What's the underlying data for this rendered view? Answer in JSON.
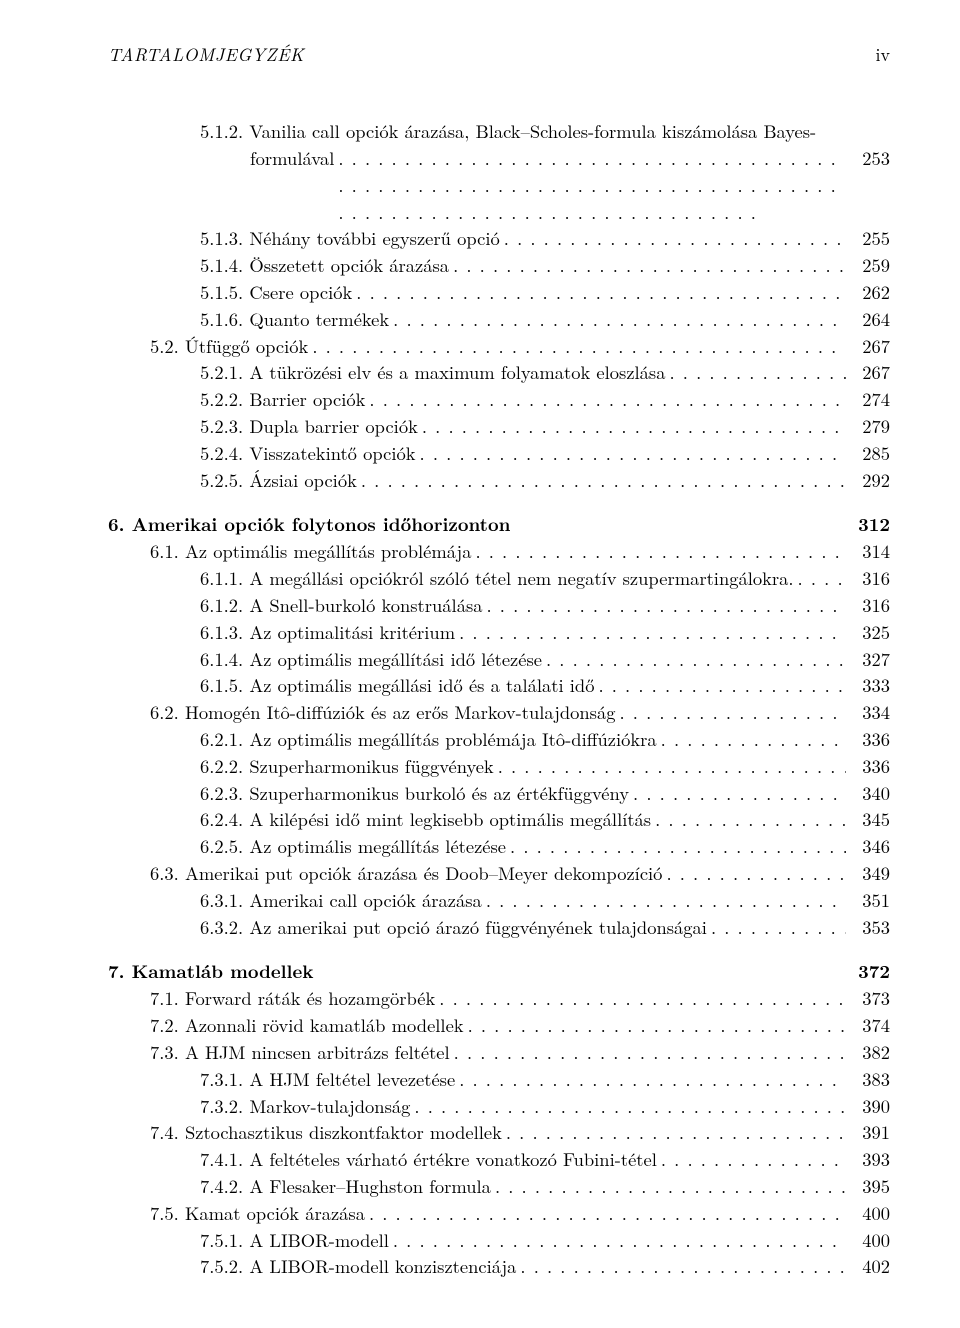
{
  "header": {
    "left": "TARTALOMJEGYZÉK",
    "right": "iv"
  },
  "entries": [
    {
      "type": "wrap",
      "indent": 2,
      "num": "5.1.2.",
      "text1": "Vanilia call opciók árazása, Black–Scholes-formula kiszámolása Bayes-",
      "text2": "formulával",
      "l2pad": 92,
      "page": "253"
    },
    {
      "indent": 2,
      "num": "5.1.3.",
      "text": "Néhány további egyszerű opció",
      "page": "255"
    },
    {
      "indent": 2,
      "num": "5.1.4.",
      "text": "Összetett opciók árazása",
      "page": "259"
    },
    {
      "indent": 2,
      "num": "5.1.5.",
      "text": "Csere opciók",
      "page": "262"
    },
    {
      "indent": 2,
      "num": "5.1.6.",
      "text": "Quanto termékek",
      "page": "264"
    },
    {
      "indent": 1,
      "num": "5.2.",
      "text": "Útfüggő opciók",
      "page": "267"
    },
    {
      "indent": 2,
      "num": "5.2.1.",
      "text": "A tükrözési elv és a maximum folyamatok eloszlása",
      "page": "267"
    },
    {
      "indent": 2,
      "num": "5.2.2.",
      "text": "Barrier opciók",
      "page": "274"
    },
    {
      "indent": 2,
      "num": "5.2.3.",
      "text": "Dupla barrier opciók",
      "page": "279"
    },
    {
      "indent": 2,
      "num": "5.2.4.",
      "text": "Visszatekintő opciók",
      "page": "285"
    },
    {
      "indent": 2,
      "num": "5.2.5.",
      "text": "Ázsiai opciók",
      "page": "292"
    },
    {
      "indent": 0,
      "num": "6.",
      "text": "Amerikai opciók folytonos időhorizonton",
      "page": "312",
      "bold": true,
      "gap": true,
      "nodots": true
    },
    {
      "indent": 1,
      "num": "6.1.",
      "text": "Az optimális megállítás problémája",
      "page": "314"
    },
    {
      "indent": 2,
      "num": "6.1.1.",
      "text": "A megállási opciókról szóló tétel nem negatív szupermartingálokra.",
      "page": "316"
    },
    {
      "indent": 2,
      "num": "6.1.2.",
      "text": "A Snell-burkoló konstruálása",
      "page": "316"
    },
    {
      "indent": 2,
      "num": "6.1.3.",
      "text": "Az optimalitási kritérium",
      "page": "325"
    },
    {
      "indent": 2,
      "num": "6.1.4.",
      "text": "Az optimális megállítási idő létezése",
      "page": "327"
    },
    {
      "indent": 2,
      "num": "6.1.5.",
      "text": "Az optimális megállási idő és a találati idő",
      "page": "333"
    },
    {
      "indent": 1,
      "num": "6.2.",
      "text": "Homogén Itô-diffúziók és az erős Markov-tulajdonság",
      "page": "334"
    },
    {
      "indent": 2,
      "num": "6.2.1.",
      "text": "Az optimális megállítás problémája Itô-diffúziókra",
      "page": "336"
    },
    {
      "indent": 2,
      "num": "6.2.2.",
      "text": "Szuperharmonikus függvények",
      "page": "336"
    },
    {
      "indent": 2,
      "num": "6.2.3.",
      "text": "Szuperharmonikus burkoló és az értékfüggvény",
      "page": "340"
    },
    {
      "indent": 2,
      "num": "6.2.4.",
      "text": "A kilépési idő mint legkisebb optimális megállítás",
      "page": "345"
    },
    {
      "indent": 2,
      "num": "6.2.5.",
      "text": "Az optimális megállítás létezése",
      "page": "346"
    },
    {
      "indent": 1,
      "num": "6.3.",
      "text": "Amerikai put opciók árazása és Doob–Meyer dekompozíció",
      "page": "349"
    },
    {
      "indent": 2,
      "num": "6.3.1.",
      "text": "Amerikai call opciók árazása",
      "page": "351"
    },
    {
      "indent": 2,
      "num": "6.3.2.",
      "text": "Az amerikai put opció árazó függvényének tulajdonságai",
      "page": "353"
    },
    {
      "indent": 0,
      "num": "7.",
      "text": "Kamatláb modellek",
      "page": "372",
      "bold": true,
      "gap": true,
      "nodots": true
    },
    {
      "indent": 1,
      "num": "7.1.",
      "text": "Forward ráták és hozamgörbék",
      "page": "373"
    },
    {
      "indent": 1,
      "num": "7.2.",
      "text": "Azonnali rövid kamatláb modellek",
      "page": "374"
    },
    {
      "indent": 1,
      "num": "7.3.",
      "text": "A HJM nincsen arbitrázs feltétel",
      "page": "382"
    },
    {
      "indent": 2,
      "num": "7.3.1.",
      "text": "A HJM feltétel levezetése",
      "page": "383"
    },
    {
      "indent": 2,
      "num": "7.3.2.",
      "text": "Markov-tulajdonság",
      "page": "390"
    },
    {
      "indent": 1,
      "num": "7.4.",
      "text": "Sztochasztikus diszkontfaktor modellek",
      "page": "391"
    },
    {
      "indent": 2,
      "num": "7.4.1.",
      "text": "A feltételes várható értékre vonatkozó Fubini-tétel",
      "page": "393"
    },
    {
      "indent": 2,
      "num": "7.4.2.",
      "text": "A Flesaker–Hughston formula",
      "page": "395"
    },
    {
      "indent": 1,
      "num": "7.5.",
      "text": "Kamat opciók árazása",
      "page": "400"
    },
    {
      "indent": 2,
      "num": "7.5.1.",
      "text": "A LIBOR-modell",
      "page": "400"
    },
    {
      "indent": 2,
      "num": "7.5.2.",
      "text": "A LIBOR-modell konzisztenciája",
      "page": "402"
    }
  ]
}
